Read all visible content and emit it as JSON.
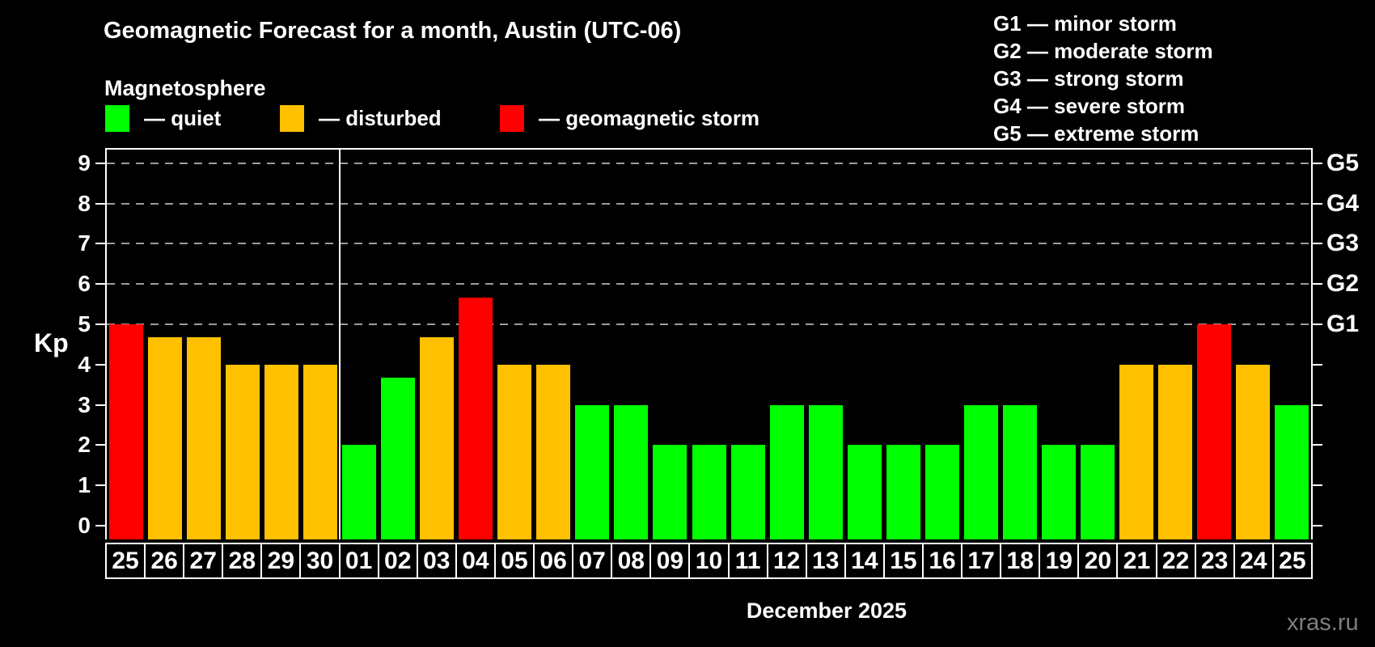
{
  "title": "Geomagnetic Forecast for a month, Austin (UTC-06)",
  "subtitle": "Magnetosphere",
  "legend": {
    "quiet": {
      "label": "— quiet",
      "color": "#00ff00"
    },
    "disturbed": {
      "label": "— disturbed",
      "color": "#ffc000"
    },
    "storm": {
      "label": "— geomagnetic storm",
      "color": "#ff0000"
    }
  },
  "g_legend": [
    "G1 — minor storm",
    "G2 — moderate storm",
    "G3 — strong storm",
    "G4 — severe storm",
    "G5 — extreme storm"
  ],
  "watermark": "xras.ru",
  "chart_data": {
    "type": "bar",
    "title": "Geomagnetic Forecast for a month, Austin (UTC-06)",
    "subtitle": "Magnetosphere",
    "xlabel": "December 2025",
    "ylabel": "Kp",
    "ylim": [
      0,
      9
    ],
    "y_ticks": [
      0,
      1,
      2,
      3,
      4,
      5,
      6,
      7,
      8,
      9
    ],
    "grid_levels": [
      5,
      6,
      7,
      8,
      9
    ],
    "grid_on": true,
    "right_axis": [
      {
        "label": "G1",
        "kp": 5
      },
      {
        "label": "G2",
        "kp": 6
      },
      {
        "label": "G3",
        "kp": 7
      },
      {
        "label": "G4",
        "kp": 8
      },
      {
        "label": "G5",
        "kp": 9
      }
    ],
    "categories": [
      "25",
      "26",
      "27",
      "28",
      "29",
      "30",
      "01",
      "02",
      "03",
      "04",
      "05",
      "06",
      "07",
      "08",
      "09",
      "10",
      "11",
      "12",
      "13",
      "14",
      "15",
      "16",
      "17",
      "18",
      "19",
      "20",
      "21",
      "22",
      "23",
      "24",
      "25"
    ],
    "values": [
      5,
      4.67,
      4.67,
      4,
      4,
      4,
      2,
      3.67,
      4.67,
      5.67,
      4,
      4,
      3,
      3,
      2,
      2,
      2,
      3,
      3,
      2,
      2,
      2,
      3,
      3,
      2,
      2,
      4,
      4,
      5,
      4,
      3
    ],
    "statuses": [
      "storm",
      "disturbed",
      "disturbed",
      "disturbed",
      "disturbed",
      "disturbed",
      "quiet",
      "quiet",
      "disturbed",
      "storm",
      "disturbed",
      "disturbed",
      "quiet",
      "quiet",
      "quiet",
      "quiet",
      "quiet",
      "quiet",
      "quiet",
      "quiet",
      "quiet",
      "quiet",
      "quiet",
      "quiet",
      "quiet",
      "quiet",
      "disturbed",
      "disturbed",
      "storm",
      "disturbed",
      "quiet"
    ],
    "colors": {
      "quiet": "#00ff00",
      "disturbed": "#ffc000",
      "storm": "#ff0000"
    },
    "month_separator_index": 6,
    "legend_position": "top"
  }
}
